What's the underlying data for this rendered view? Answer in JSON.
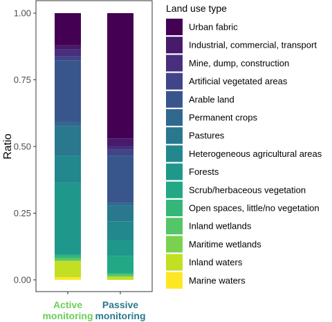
{
  "chart_data": {
    "type": "bar",
    "stacked": true,
    "categories": [
      {
        "line1": "Active",
        "line2": "monitoring",
        "color": "#6ccd5a"
      },
      {
        "line1": "Passive",
        "line2": "monitoring",
        "color": "#2a788e"
      }
    ],
    "ylabel": "Ratio",
    "ylim": [
      0,
      1
    ],
    "yticks": [
      {
        "value": 0.0,
        "label": "0.00"
      },
      {
        "value": 0.25,
        "label": "0.25"
      },
      {
        "value": 0.5,
        "label": "0.50"
      },
      {
        "value": 0.75,
        "label": "0.75"
      },
      {
        "value": 1.0,
        "label": "1.00"
      }
    ],
    "legend_title": "Land use type",
    "legend_position": "right",
    "series": [
      {
        "name": "Urban fabric",
        "color": "#440154",
        "values": [
          0.12,
          0.4
        ]
      },
      {
        "name": "Industrial, commercial, transport",
        "color": "#481a6c",
        "values": [
          0.015,
          0.025
        ]
      },
      {
        "name": "Mine, dump, construction",
        "color": "#472f7d",
        "values": [
          0.025,
          0.01
        ]
      },
      {
        "name": "Artificial vegetated areas",
        "color": "#414487",
        "values": [
          0.015,
          0.02
        ]
      },
      {
        "name": "Arable land",
        "color": "#39568c",
        "values": [
          0.23,
          0.15
        ]
      },
      {
        "name": "Permanent crops",
        "color": "#31688e",
        "values": [
          0.015,
          0.01
        ]
      },
      {
        "name": "Pastures",
        "color": "#2a788e",
        "values": [
          0.11,
          0.05
        ]
      },
      {
        "name": "Heterogeneous agricultural areas",
        "color": "#23888e",
        "values": [
          0.1,
          0.06
        ]
      },
      {
        "name": "Forests",
        "color": "#1f988b",
        "values": [
          0.265,
          0.05
        ]
      },
      {
        "name": "Scrub/herbaceous vegetation",
        "color": "#22a884",
        "values": [
          0.005,
          0.055
        ]
      },
      {
        "name": "Open spaces, little/no vegetation",
        "color": "#35b779",
        "values": [
          0.008,
          0.005
        ]
      },
      {
        "name": "Inland wetlands",
        "color": "#54c568",
        "values": [
          0.01,
          0.005
        ]
      },
      {
        "name": "Maritime wetlands",
        "color": "#7ad151",
        "values": [
          0.002,
          0.002
        ]
      },
      {
        "name": "Inland waters",
        "color": "#c2df23",
        "values": [
          0.06,
          0.01
        ]
      },
      {
        "name": "Marine waters",
        "color": "#fde725",
        "values": [
          0.01,
          0.0
        ]
      }
    ],
    "grid": false
  }
}
